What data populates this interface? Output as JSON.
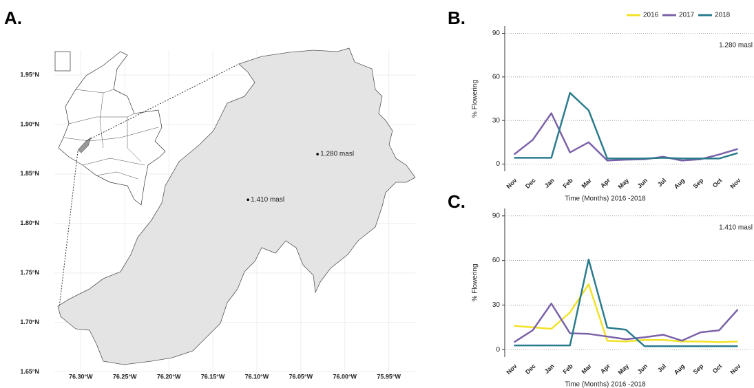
{
  "chart_data": [
    {
      "type": "map",
      "panel": "A.",
      "xlim": [
        -76.33,
        -75.92
      ],
      "ylim": [
        1.64,
        1.975
      ],
      "xticks": [
        {
          "value": -76.3,
          "label": "76.30°W"
        },
        {
          "value": -76.25,
          "label": "76.25°W"
        },
        {
          "value": -76.2,
          "label": "76.20°W"
        },
        {
          "value": -76.15,
          "label": "76.15°W"
        },
        {
          "value": -76.1,
          "label": "76.10°W"
        },
        {
          "value": -76.05,
          "label": "76.05°W"
        },
        {
          "value": -76.0,
          "label": "76.00°W"
        },
        {
          "value": -75.95,
          "label": "75.95°W"
        }
      ],
      "yticks": [
        {
          "value": 1.65,
          "label": "1.65°N"
        },
        {
          "value": 1.7,
          "label": "1.70°N"
        },
        {
          "value": 1.75,
          "label": "1.75°N"
        },
        {
          "value": 1.8,
          "label": "1.80°N"
        },
        {
          "value": 1.85,
          "label": "1.85°N"
        },
        {
          "value": 1.9,
          "label": "1.90°N"
        },
        {
          "value": 1.95,
          "label": "1.95°N"
        }
      ],
      "grid": true,
      "points": [
        {
          "label": "1.280 masl",
          "x": -76.031,
          "y": 1.87
        },
        {
          "label": "1.410 masl",
          "x": -76.11,
          "y": 1.824
        }
      ]
    },
    {
      "type": "line",
      "panel": "B.",
      "xlabel": "Time (Months) 2016 -2018",
      "ylabel": "% Flowering",
      "annotation": "1.280 masl",
      "categories": [
        "Nov",
        "Dec",
        "Jan",
        "Feb",
        "Mar",
        "Apr",
        "May",
        "Jun",
        "Jul",
        "Aug",
        "Sep",
        "Oct",
        "Nov"
      ],
      "ylim": [
        -5,
        95
      ],
      "yticks": [
        0,
        30,
        60,
        90
      ],
      "grid": true,
      "legend": "top",
      "series": [
        {
          "name": "2016",
          "color": "#f2e227",
          "values": [
            null,
            null,
            null,
            null,
            null,
            null,
            null,
            null,
            null,
            null,
            null,
            null,
            null
          ]
        },
        {
          "name": "2017",
          "color": "#7b62a8",
          "values": [
            6.6,
            16.6,
            35,
            8,
            15,
            2.4,
            3,
            3.3,
            5,
            2.4,
            3.3,
            6.6,
            10.4
          ]
        },
        {
          "name": "2018",
          "color": "#2a7b8c",
          "values": [
            4.3,
            4.3,
            4.3,
            49,
            37,
            3.8,
            3.8,
            3.8,
            4.3,
            3.8,
            3.8,
            3.8,
            7.6
          ]
        }
      ]
    },
    {
      "type": "line",
      "panel": "C.",
      "xlabel": "Time (Months) 2016 -2018",
      "ylabel": "% Flowering",
      "annotation": "1.410 masl",
      "categories": [
        "Nov",
        "Dec",
        "Jan",
        "Feb",
        "Mar",
        "Apr",
        "May",
        "Jun",
        "Jul",
        "Aug",
        "Sep",
        "Oct",
        "Nov"
      ],
      "ylim": [
        -5,
        95
      ],
      "yticks": [
        0,
        30,
        60,
        90
      ],
      "grid": true,
      "series": [
        {
          "name": "2016",
          "color": "#f2e227",
          "values": [
            16,
            15,
            14,
            25,
            44,
            6,
            5.5,
            6.5,
            6.5,
            5.5,
            5.5,
            5,
            5.5
          ]
        },
        {
          "name": "2017",
          "color": "#7b62a8",
          "values": [
            5,
            13,
            31,
            11,
            10.6,
            8.8,
            7,
            8.3,
            10,
            6,
            11.6,
            13,
            27
          ]
        },
        {
          "name": "2018",
          "color": "#2a7b8c",
          "values": [
            2.8,
            2.8,
            2.8,
            2.8,
            60.6,
            14.8,
            13.4,
            2.3,
            2.3,
            2.3,
            2.3,
            2.3,
            2.3
          ]
        }
      ]
    }
  ]
}
